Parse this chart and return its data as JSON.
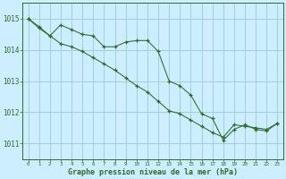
{
  "series1_x": [
    0,
    1,
    2,
    3,
    4,
    5,
    6,
    7,
    8,
    9,
    10,
    11,
    12,
    13,
    14,
    15,
    16,
    17,
    18,
    19,
    20,
    21,
    22,
    23
  ],
  "series1_y": [
    1015.0,
    1014.75,
    1014.45,
    1014.8,
    1014.65,
    1014.5,
    1014.45,
    1014.1,
    1014.1,
    1014.25,
    1014.3,
    1014.3,
    1013.95,
    1013.0,
    1012.85,
    1012.55,
    1011.95,
    1011.8,
    1011.1,
    1011.45,
    1011.6,
    1011.45,
    1011.4,
    1011.65
  ],
  "series2_x": [
    0,
    1,
    2,
    3,
    4,
    5,
    6,
    7,
    8,
    9,
    10,
    11,
    12,
    13,
    14,
    15,
    16,
    17,
    18,
    19,
    20,
    21,
    22,
    23
  ],
  "series2_y": [
    1015.0,
    1014.7,
    1014.45,
    1014.2,
    1014.1,
    1013.95,
    1013.75,
    1013.55,
    1013.35,
    1013.1,
    1012.85,
    1012.65,
    1012.35,
    1012.05,
    1011.95,
    1011.75,
    1011.55,
    1011.35,
    1011.2,
    1011.6,
    1011.55,
    1011.5,
    1011.45,
    1011.65
  ],
  "line_color": "#2d6a2d",
  "bg_color": "#cceeff",
  "grid_color": "#99cccc",
  "xlabel": "Graphe pression niveau de la mer (hPa)",
  "xlim": [
    -0.5,
    23.5
  ],
  "ylim": [
    1010.5,
    1015.5
  ],
  "yticks": [
    1011,
    1012,
    1013,
    1014,
    1015
  ],
  "xticks": [
    0,
    1,
    2,
    3,
    4,
    5,
    6,
    7,
    8,
    9,
    10,
    11,
    12,
    13,
    14,
    15,
    16,
    17,
    18,
    19,
    20,
    21,
    22,
    23
  ]
}
